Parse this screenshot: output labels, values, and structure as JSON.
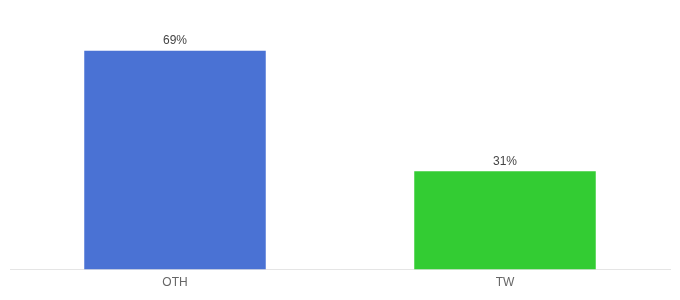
{
  "chart_data": {
    "type": "bar",
    "categories": [
      "OTH",
      "TW"
    ],
    "values": [
      69,
      31
    ],
    "value_labels": [
      "69%",
      "31%"
    ],
    "colors": [
      "#4a72d4",
      "#33cc33"
    ],
    "ylim": [
      0,
      80
    ],
    "grid": false,
    "data_labels": true,
    "tick_labels": "x"
  }
}
